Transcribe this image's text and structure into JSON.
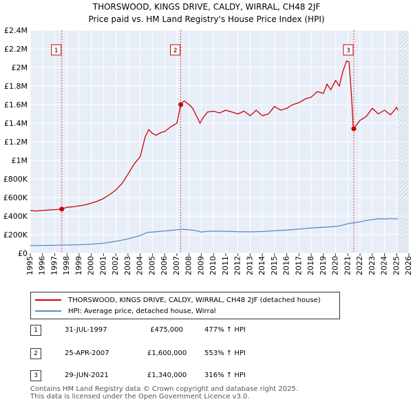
{
  "chart_data": {
    "type": "line",
    "title": "THORSWOOD, KINGS DRIVE, CALDY, WIRRAL, CH48 2JF",
    "subtitle": "Price paid vs. HM Land Registry's House Price Index (HPI)",
    "xlim": [
      1995,
      2026
    ],
    "ylim": [
      0,
      2400000
    ],
    "x_ticks": [
      1995,
      1996,
      1997,
      1998,
      1999,
      2000,
      2001,
      2002,
      2003,
      2004,
      2005,
      2006,
      2007,
      2008,
      2009,
      2010,
      2011,
      2012,
      2013,
      2014,
      2015,
      2016,
      2017,
      2018,
      2019,
      2020,
      2021,
      2022,
      2023,
      2024,
      2025,
      2026
    ],
    "y_ticks": [
      {
        "value": 0,
        "label": "£0"
      },
      {
        "value": 200000,
        "label": "£200K"
      },
      {
        "value": 400000,
        "label": "£400K"
      },
      {
        "value": 600000,
        "label": "£600K"
      },
      {
        "value": 800000,
        "label": "£800K"
      },
      {
        "value": 1000000,
        "label": "£1M"
      },
      {
        "value": 1200000,
        "label": "£1.2M"
      },
      {
        "value": 1400000,
        "label": "£1.4M"
      },
      {
        "value": 1600000,
        "label": "£1.6M"
      },
      {
        "value": 1800000,
        "label": "£1.8M"
      },
      {
        "value": 2000000,
        "label": "£2M"
      },
      {
        "value": 2200000,
        "label": "£2.2M"
      },
      {
        "value": 2400000,
        "label": "£2.4M"
      }
    ],
    "hatch_from": 2025.1,
    "series": [
      {
        "name": "THORSWOOD, KINGS DRIVE, CALDY, WIRRAL, CH48 2JF (detached house)",
        "color": "#cc0000",
        "x": [
          1995.0,
          1995.5,
          1996.0,
          1996.5,
          1997.0,
          1997.58,
          1998.0,
          1998.5,
          1999.0,
          1999.5,
          2000.0,
          2000.5,
          2001.0,
          2001.5,
          2002.0,
          2002.5,
          2003.0,
          2003.5,
          2004.0,
          2004.4,
          2004.7,
          2005.0,
          2005.3,
          2005.7,
          2006.0,
          2006.5,
          2007.0,
          2007.32,
          2007.6,
          2008.0,
          2008.3,
          2008.6,
          2008.9,
          2009.1,
          2009.5,
          2010.0,
          2010.5,
          2011.0,
          2011.5,
          2012.0,
          2012.5,
          2013.0,
          2013.5,
          2014.0,
          2014.5,
          2015.0,
          2015.5,
          2016.0,
          2016.5,
          2017.0,
          2017.5,
          2018.0,
          2018.5,
          2019.0,
          2019.3,
          2019.6,
          2020.0,
          2020.3,
          2020.6,
          2020.9,
          2021.1,
          2021.3,
          2021.45,
          2021.7,
          2022.0,
          2022.5,
          2023.0,
          2023.5,
          2024.0,
          2024.5,
          2025.0,
          2025.1
        ],
        "values": [
          460000,
          455000,
          460000,
          465000,
          470000,
          475000,
          495000,
          500000,
          510000,
          520000,
          540000,
          560000,
          590000,
          630000,
          680000,
          750000,
          850000,
          960000,
          1040000,
          1250000,
          1330000,
          1290000,
          1270000,
          1300000,
          1310000,
          1360000,
          1400000,
          1600000,
          1640000,
          1600000,
          1560000,
          1480000,
          1400000,
          1450000,
          1520000,
          1530000,
          1510000,
          1540000,
          1520000,
          1500000,
          1530000,
          1480000,
          1540000,
          1480000,
          1500000,
          1580000,
          1540000,
          1560000,
          1600000,
          1620000,
          1660000,
          1680000,
          1740000,
          1720000,
          1820000,
          1760000,
          1860000,
          1800000,
          1960000,
          2070000,
          2060000,
          1700000,
          1340000,
          1380000,
          1430000,
          1470000,
          1560000,
          1500000,
          1540000,
          1490000,
          1570000,
          1540000
        ]
      },
      {
        "name": "HPI: Average price, detached house, Wirral",
        "color": "#5a8cc8",
        "x": [
          1995.0,
          1996.0,
          1997.0,
          1998.0,
          1999.0,
          2000.0,
          2001.0,
          2002.0,
          2003.0,
          2004.0,
          2004.6,
          2005.0,
          2006.0,
          2007.0,
          2007.5,
          2008.0,
          2008.5,
          2009.0,
          2009.5,
          2010.0,
          2011.0,
          2012.0,
          2013.0,
          2014.0,
          2015.0,
          2016.0,
          2017.0,
          2018.0,
          2019.0,
          2020.0,
          2020.5,
          2021.0,
          2021.5,
          2022.0,
          2022.5,
          2023.0,
          2023.5,
          2024.0,
          2024.5,
          2025.0,
          2025.1
        ],
        "values": [
          82000,
          84000,
          86000,
          89000,
          92000,
          98000,
          108000,
          128000,
          155000,
          190000,
          225000,
          228000,
          240000,
          252000,
          258000,
          252000,
          245000,
          228000,
          236000,
          238000,
          236000,
          232000,
          230000,
          234000,
          242000,
          250000,
          260000,
          272000,
          280000,
          288000,
          300000,
          318000,
          328000,
          338000,
          352000,
          362000,
          372000,
          368000,
          374000,
          370000,
          372000
        ]
      }
    ],
    "sales": [
      {
        "marker": "1",
        "x": 1997.58,
        "value": 475000
      },
      {
        "marker": "2",
        "x": 2007.32,
        "value": 1600000
      },
      {
        "marker": "3",
        "x": 2021.49,
        "value": 1340000
      }
    ]
  },
  "legend": {
    "items": [
      {
        "label": "THORSWOOD, KINGS DRIVE, CALDY, WIRRAL, CH48 2JF (detached house)",
        "color": "#cc0000"
      },
      {
        "label": "HPI: Average price, detached house, Wirral",
        "color": "#5a8cc8"
      }
    ]
  },
  "sales_table": [
    {
      "num": "1",
      "date": "31-JUL-1997",
      "price": "£475,000",
      "hpi": "477% ↑ HPI"
    },
    {
      "num": "2",
      "date": "25-APR-2007",
      "price": "£1,600,000",
      "hpi": "553% ↑ HPI"
    },
    {
      "num": "3",
      "date": "29-JUN-2021",
      "price": "£1,340,000",
      "hpi": "316% ↑ HPI"
    }
  ],
  "footer": {
    "line1": "Contains HM Land Registry data © Crown copyright and database right 2025.",
    "line2": "This data is licensed under the Open Government Licence v3.0."
  }
}
